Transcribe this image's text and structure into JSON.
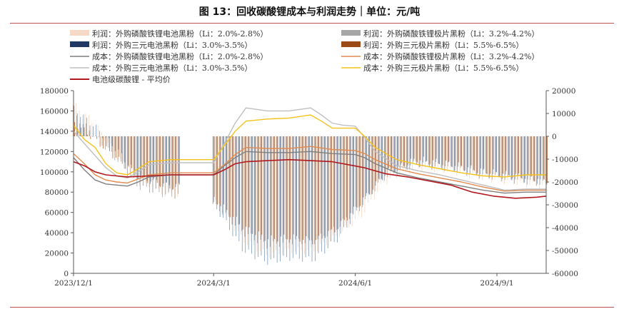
{
  "title": "图 13：回收碳酸锂成本与利润走势｜单位：元/吨",
  "chart_data": {
    "type": "bar+line",
    "x_ticks": [
      "2023/12/1",
      "2024/3/1",
      "2024/6/1",
      "2024/9/1"
    ],
    "x_range": [
      "2023-12-01",
      "2024-10-03"
    ],
    "y_left": {
      "min": 0,
      "max": 180000,
      "ticks": [
        0,
        20000,
        40000,
        60000,
        80000,
        100000,
        120000,
        140000,
        160000,
        180000
      ]
    },
    "y_right": {
      "min": -60000,
      "max": 20000,
      "ticks": [
        -60000,
        -50000,
        -40000,
        -30000,
        -20000,
        -10000,
        0,
        10000,
        20000
      ]
    },
    "legend": [
      {
        "label": "利润：外购磷酸铁锂电池黑粉（Li：2.0%-2.8%）",
        "kind": "bar",
        "color": "#f5d9c4"
      },
      {
        "label": "利润：外购磷酸铁锂极片黑粉（Li：3.2%-4.2%）",
        "kind": "bar",
        "color": "#a6a6a6"
      },
      {
        "label": "利润：外购三元电池黑粉（Li：3.0%-3.5%）",
        "kind": "bar",
        "color": "#1f3864"
      },
      {
        "label": "利润：外购三元极片黑粉（Li：5.5%-6.5%）",
        "kind": "bar",
        "color": "#9c4a16"
      },
      {
        "label": "成本：外购磷酸铁锂电池黑粉（Li：2.0%-2.8%）",
        "kind": "line",
        "color": "#7f7f7f"
      },
      {
        "label": "成本：外购磷酸铁锂极片黑粉（Li：3.2%-4.2%）",
        "kind": "line",
        "color": "#e08a4f"
      },
      {
        "label": "成本：外购三元电池黑粉（Li：3.0%-3.5%）",
        "kind": "line",
        "color": "#bfbfbf"
      },
      {
        "label": "成本：外购三元极片黑粉（Li：5.5%-6.5%）",
        "kind": "line",
        "color": "#f4c21b"
      },
      {
        "label": "电池级碳酸锂 - 平均价",
        "kind": "line",
        "color": "#b0191e"
      }
    ],
    "series": [
      {
        "name": "电池级碳酸锂 - 平均价",
        "axis": "left",
        "color": "#b0191e",
        "width": 1.6,
        "points": [
          [
            "2023-12-01",
            110000
          ],
          [
            "2023-12-08",
            106000
          ],
          [
            "2023-12-15",
            100000
          ],
          [
            "2023-12-22",
            97000
          ],
          [
            "2023-12-29",
            96000
          ],
          [
            "2024-01-05",
            95000
          ],
          [
            "2024-01-19",
            96000
          ],
          [
            "2024-02-02",
            97000
          ],
          [
            "2024-02-16",
            97000
          ],
          [
            "2024-03-01",
            97000
          ],
          [
            "2024-03-08",
            102000
          ],
          [
            "2024-03-15",
            108000
          ],
          [
            "2024-03-22",
            110000
          ],
          [
            "2024-04-05",
            111000
          ],
          [
            "2024-04-19",
            112000
          ],
          [
            "2024-05-03",
            111000
          ],
          [
            "2024-05-17",
            110000
          ],
          [
            "2024-05-31",
            106000
          ],
          [
            "2024-06-07",
            104000
          ],
          [
            "2024-06-14",
            101000
          ],
          [
            "2024-06-21",
            98000
          ],
          [
            "2024-07-05",
            95000
          ],
          [
            "2024-07-19",
            91000
          ],
          [
            "2024-08-02",
            87000
          ],
          [
            "2024-08-16",
            80000
          ],
          [
            "2024-08-30",
            76000
          ],
          [
            "2024-09-06",
            75000
          ],
          [
            "2024-09-13",
            74000
          ],
          [
            "2024-09-27",
            75000
          ],
          [
            "2024-10-03",
            76000
          ]
        ]
      },
      {
        "name": "成本：外购三元极片黑粉（Li：5.5%-6.5%）",
        "axis": "left",
        "color": "#f4c21b",
        "width": 1.4,
        "points": [
          [
            "2023-12-01",
            146000
          ],
          [
            "2023-12-08",
            132000
          ],
          [
            "2023-12-15",
            124000
          ],
          [
            "2023-12-22",
            108000
          ],
          [
            "2023-12-29",
            99000
          ],
          [
            "2024-01-05",
            97000
          ],
          [
            "2024-01-12",
            103000
          ],
          [
            "2024-01-19",
            110000
          ],
          [
            "2024-02-02",
            112000
          ],
          [
            "2024-02-16",
            112000
          ],
          [
            "2024-03-01",
            112000
          ],
          [
            "2024-03-08",
            126000
          ],
          [
            "2024-03-15",
            140000
          ],
          [
            "2024-03-22",
            150000
          ],
          [
            "2024-04-05",
            152000
          ],
          [
            "2024-04-19",
            153000
          ],
          [
            "2024-05-03",
            156000
          ],
          [
            "2024-05-10",
            150000
          ],
          [
            "2024-05-17",
            143000
          ],
          [
            "2024-05-24",
            143000
          ],
          [
            "2024-06-01",
            143000
          ],
          [
            "2024-06-07",
            135000
          ],
          [
            "2024-06-14",
            124000
          ],
          [
            "2024-06-28",
            112000
          ],
          [
            "2024-07-12",
            107000
          ],
          [
            "2024-07-26",
            103000
          ],
          [
            "2024-08-09",
            99000
          ],
          [
            "2024-08-23",
            96000
          ],
          [
            "2024-09-06",
            95000
          ],
          [
            "2024-09-20",
            97000
          ],
          [
            "2024-10-03",
            97000
          ]
        ]
      },
      {
        "name": "成本：外购三元电池黑粉（Li：3.0%-3.5%）",
        "axis": "left",
        "color": "#bfbfbf",
        "width": 1.4,
        "points": [
          [
            "2023-12-01",
            140000
          ],
          [
            "2023-12-08",
            128000
          ],
          [
            "2023-12-15",
            116000
          ],
          [
            "2023-12-22",
            104000
          ],
          [
            "2023-12-29",
            96000
          ],
          [
            "2024-01-05",
            94000
          ],
          [
            "2024-01-12",
            100000
          ],
          [
            "2024-01-19",
            107000
          ],
          [
            "2024-02-02",
            109000
          ],
          [
            "2024-02-16",
            109000
          ],
          [
            "2024-03-01",
            109000
          ],
          [
            "2024-03-08",
            128000
          ],
          [
            "2024-03-15",
            148000
          ],
          [
            "2024-03-22",
            163000
          ],
          [
            "2024-04-05",
            160000
          ],
          [
            "2024-04-19",
            160000
          ],
          [
            "2024-05-03",
            163000
          ],
          [
            "2024-05-10",
            156000
          ],
          [
            "2024-05-17",
            148000
          ],
          [
            "2024-05-24",
            146000
          ],
          [
            "2024-06-01",
            145000
          ],
          [
            "2024-06-07",
            134000
          ],
          [
            "2024-06-14",
            120000
          ],
          [
            "2024-06-28",
            106000
          ],
          [
            "2024-07-12",
            101000
          ],
          [
            "2024-07-26",
            97000
          ],
          [
            "2024-08-09",
            92000
          ],
          [
            "2024-08-23",
            87000
          ],
          [
            "2024-09-06",
            82000
          ],
          [
            "2024-09-20",
            83000
          ],
          [
            "2024-10-03",
            83000
          ]
        ]
      },
      {
        "name": "成本：外购磷酸铁锂极片黑粉（Li：3.2%-4.2%）",
        "axis": "left",
        "color": "#e08a4f",
        "width": 1.4,
        "points": [
          [
            "2023-12-01",
            118000
          ],
          [
            "2023-12-08",
            108000
          ],
          [
            "2023-12-15",
            97000
          ],
          [
            "2023-12-22",
            92000
          ],
          [
            "2023-12-29",
            90000
          ],
          [
            "2024-01-05",
            89000
          ],
          [
            "2024-01-12",
            93000
          ],
          [
            "2024-01-19",
            97000
          ],
          [
            "2024-02-02",
            99000
          ],
          [
            "2024-02-16",
            99000
          ],
          [
            "2024-03-01",
            99000
          ],
          [
            "2024-03-08",
            107000
          ],
          [
            "2024-03-15",
            117000
          ],
          [
            "2024-03-22",
            124000
          ],
          [
            "2024-04-05",
            123000
          ],
          [
            "2024-04-19",
            123000
          ],
          [
            "2024-05-03",
            125000
          ],
          [
            "2024-05-17",
            122000
          ],
          [
            "2024-06-01",
            121000
          ],
          [
            "2024-06-07",
            118000
          ],
          [
            "2024-06-14",
            112000
          ],
          [
            "2024-06-28",
            103000
          ],
          [
            "2024-07-12",
            98000
          ],
          [
            "2024-07-26",
            94000
          ],
          [
            "2024-08-09",
            90000
          ],
          [
            "2024-08-23",
            85000
          ],
          [
            "2024-09-06",
            81000
          ],
          [
            "2024-09-20",
            82000
          ],
          [
            "2024-10-03",
            82000
          ]
        ]
      },
      {
        "name": "成本：外购磷酸铁锂电池黑粉（Li：2.0%-2.8%）",
        "axis": "left",
        "color": "#7f7f7f",
        "width": 1.4,
        "points": [
          [
            "2023-12-01",
            114000
          ],
          [
            "2023-12-08",
            102000
          ],
          [
            "2023-12-15",
            92000
          ],
          [
            "2023-12-22",
            88000
          ],
          [
            "2023-12-29",
            87000
          ],
          [
            "2024-01-05",
            86000
          ],
          [
            "2024-01-12",
            90000
          ],
          [
            "2024-01-19",
            95000
          ],
          [
            "2024-02-02",
            97000
          ],
          [
            "2024-02-16",
            97000
          ],
          [
            "2024-03-01",
            97000
          ],
          [
            "2024-03-08",
            106000
          ],
          [
            "2024-03-15",
            114000
          ],
          [
            "2024-03-22",
            120000
          ],
          [
            "2024-04-05",
            119000
          ],
          [
            "2024-04-19",
            119000
          ],
          [
            "2024-05-03",
            120000
          ],
          [
            "2024-05-17",
            118000
          ],
          [
            "2024-06-01",
            117000
          ],
          [
            "2024-06-07",
            114000
          ],
          [
            "2024-06-14",
            108000
          ],
          [
            "2024-06-28",
            99000
          ],
          [
            "2024-07-12",
            94000
          ],
          [
            "2024-07-26",
            90000
          ],
          [
            "2024-08-09",
            86000
          ],
          [
            "2024-08-23",
            82000
          ],
          [
            "2024-09-06",
            79000
          ],
          [
            "2024-09-20",
            80000
          ],
          [
            "2024-10-03",
            80000
          ]
        ]
      }
    ],
    "bars": {
      "axis": "right",
      "groups": [
        {
          "name": "利润：外购磷酸铁锂电池黑粉（Li：2.0%-2.8%）",
          "color": "#f5d9c4",
          "points": [
            [
              "2023-12-01",
              14000
            ],
            [
              "2023-12-15",
              6000
            ],
            [
              "2023-12-29",
              -8000
            ],
            [
              "2024-01-12",
              -20000
            ],
            [
              "2024-02-01",
              -26000
            ],
            [
              "2024-02-20",
              -26000
            ],
            [
              "2024-03-05",
              -30000
            ],
            [
              "2024-03-20",
              -45000
            ],
            [
              "2024-04-05",
              -52000
            ],
            [
              "2024-04-20",
              -50000
            ],
            [
              "2024-05-05",
              -50000
            ],
            [
              "2024-05-20",
              -44000
            ],
            [
              "2024-06-05",
              -35000
            ],
            [
              "2024-06-20",
              -20000
            ],
            [
              "2024-07-10",
              -14000
            ],
            [
              "2024-08-01",
              -15000
            ],
            [
              "2024-08-20",
              -18000
            ],
            [
              "2024-09-10",
              -20000
            ],
            [
              "2024-10-03",
              -22000
            ]
          ]
        },
        {
          "name": "利润：外购磷酸铁锂极片黑粉（Li：3.2%-4.2%）",
          "color": "#a6a6a6",
          "points": [
            [
              "2023-12-01",
              10000
            ],
            [
              "2023-12-15",
              0
            ],
            [
              "2023-12-29",
              -10000
            ],
            [
              "2024-01-12",
              -22000
            ],
            [
              "2024-02-01",
              -26000
            ],
            [
              "2024-02-20",
              -26000
            ],
            [
              "2024-03-05",
              -32000
            ],
            [
              "2024-03-20",
              -42000
            ],
            [
              "2024-04-05",
              -48000
            ],
            [
              "2024-04-20",
              -46000
            ],
            [
              "2024-05-05",
              -46000
            ],
            [
              "2024-05-20",
              -40000
            ],
            [
              "2024-06-05",
              -30000
            ],
            [
              "2024-06-20",
              -18000
            ],
            [
              "2024-07-10",
              -12000
            ],
            [
              "2024-08-01",
              -14000
            ],
            [
              "2024-08-20",
              -17000
            ],
            [
              "2024-09-10",
              -19000
            ],
            [
              "2024-10-03",
              -21000
            ]
          ]
        },
        {
          "name": "利润：外购三元电池黑粉（Li：3.0%-3.5%）",
          "color": "#7f99bb",
          "points": [
            [
              "2023-12-01",
              12000
            ],
            [
              "2023-12-15",
              4000
            ],
            [
              "2023-12-29",
              -6000
            ],
            [
              "2024-01-12",
              -18000
            ],
            [
              "2024-02-01",
              -22000
            ],
            [
              "2024-02-20",
              -22000
            ],
            [
              "2024-03-05",
              -34000
            ],
            [
              "2024-03-20",
              -50000
            ],
            [
              "2024-04-05",
              -55000
            ],
            [
              "2024-04-20",
              -53000
            ],
            [
              "2024-05-05",
              -54000
            ],
            [
              "2024-05-20",
              -45000
            ],
            [
              "2024-06-05",
              -30000
            ],
            [
              "2024-06-20",
              -16000
            ],
            [
              "2024-07-10",
              -12000
            ],
            [
              "2024-08-01",
              -13000
            ],
            [
              "2024-08-20",
              -16000
            ],
            [
              "2024-09-10",
              -18000
            ],
            [
              "2024-10-03",
              -20000
            ]
          ]
        },
        {
          "name": "利润：外购三元极片黑粉（Li：5.5%-6.5%）",
          "color": "#b86b3e",
          "points": [
            [
              "2023-12-01",
              6000
            ],
            [
              "2023-12-15",
              -2000
            ],
            [
              "2023-12-29",
              -10000
            ],
            [
              "2024-01-12",
              -18000
            ],
            [
              "2024-02-01",
              -22000
            ],
            [
              "2024-02-20",
              -22000
            ],
            [
              "2024-03-05",
              -30000
            ],
            [
              "2024-03-20",
              -40000
            ],
            [
              "2024-04-05",
              -45000
            ],
            [
              "2024-04-20",
              -44000
            ],
            [
              "2024-05-05",
              -46000
            ],
            [
              "2024-05-20",
              -40000
            ],
            [
              "2024-06-05",
              -28000
            ],
            [
              "2024-06-20",
              -16000
            ],
            [
              "2024-07-10",
              -10000
            ],
            [
              "2024-08-01",
              -12000
            ],
            [
              "2024-08-20",
              -15000
            ],
            [
              "2024-09-10",
              -17000
            ],
            [
              "2024-10-03",
              -19000
            ]
          ]
        }
      ]
    }
  }
}
